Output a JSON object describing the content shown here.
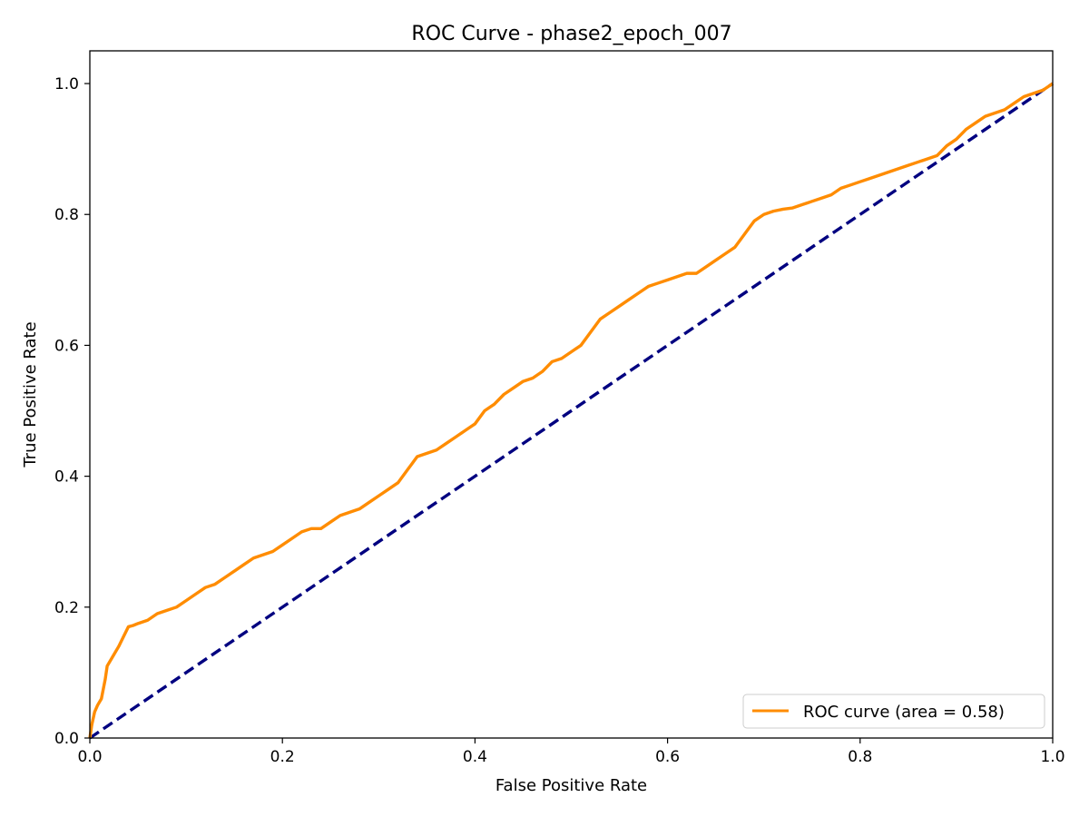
{
  "chart_data": {
    "type": "line",
    "title": "ROC Curve - phase2_epoch_007",
    "xlabel": "False Positive Rate",
    "ylabel": "True Positive Rate",
    "xlim": [
      0.0,
      1.0
    ],
    "ylim": [
      0.0,
      1.05
    ],
    "xticks": [
      "0.0",
      "0.2",
      "0.4",
      "0.6",
      "0.8",
      "1.0"
    ],
    "yticks": [
      "0.0",
      "0.2",
      "0.4",
      "0.6",
      "0.8",
      "1.0"
    ],
    "grid": false,
    "legend_position": "lower-right",
    "series": [
      {
        "name": "ROC curve (area = 0.58)",
        "color": "#ff8c00",
        "style": "solid",
        "x": [
          0.0,
          0.002,
          0.005,
          0.008,
          0.012,
          0.016,
          0.018,
          0.022,
          0.026,
          0.03,
          0.035,
          0.04,
          0.045,
          0.05,
          0.06,
          0.07,
          0.08,
          0.09,
          0.1,
          0.11,
          0.12,
          0.13,
          0.14,
          0.15,
          0.16,
          0.17,
          0.18,
          0.19,
          0.2,
          0.21,
          0.22,
          0.23,
          0.24,
          0.25,
          0.26,
          0.27,
          0.28,
          0.29,
          0.3,
          0.31,
          0.32,
          0.33,
          0.335,
          0.34,
          0.35,
          0.36,
          0.37,
          0.38,
          0.39,
          0.4,
          0.41,
          0.42,
          0.43,
          0.44,
          0.45,
          0.46,
          0.47,
          0.48,
          0.49,
          0.5,
          0.51,
          0.52,
          0.53,
          0.54,
          0.55,
          0.56,
          0.57,
          0.58,
          0.59,
          0.6,
          0.61,
          0.62,
          0.63,
          0.64,
          0.65,
          0.66,
          0.67,
          0.68,
          0.69,
          0.7,
          0.71,
          0.72,
          0.73,
          0.74,
          0.75,
          0.76,
          0.77,
          0.78,
          0.79,
          0.8,
          0.81,
          0.82,
          0.83,
          0.84,
          0.85,
          0.86,
          0.87,
          0.88,
          0.89,
          0.9,
          0.91,
          0.92,
          0.93,
          0.94,
          0.95,
          0.96,
          0.97,
          0.98,
          0.99,
          1.0
        ],
        "y": [
          0.0,
          0.02,
          0.04,
          0.05,
          0.06,
          0.09,
          0.11,
          0.12,
          0.13,
          0.14,
          0.155,
          0.17,
          0.172,
          0.175,
          0.18,
          0.19,
          0.195,
          0.2,
          0.21,
          0.22,
          0.23,
          0.235,
          0.245,
          0.255,
          0.265,
          0.275,
          0.28,
          0.285,
          0.295,
          0.305,
          0.315,
          0.32,
          0.32,
          0.33,
          0.34,
          0.345,
          0.35,
          0.36,
          0.37,
          0.38,
          0.39,
          0.41,
          0.42,
          0.43,
          0.435,
          0.44,
          0.45,
          0.46,
          0.47,
          0.48,
          0.5,
          0.51,
          0.525,
          0.535,
          0.545,
          0.55,
          0.56,
          0.575,
          0.58,
          0.59,
          0.6,
          0.62,
          0.64,
          0.65,
          0.66,
          0.67,
          0.68,
          0.69,
          0.695,
          0.7,
          0.705,
          0.71,
          0.71,
          0.72,
          0.73,
          0.74,
          0.75,
          0.77,
          0.79,
          0.8,
          0.805,
          0.808,
          0.81,
          0.815,
          0.82,
          0.825,
          0.83,
          0.84,
          0.845,
          0.85,
          0.855,
          0.86,
          0.865,
          0.87,
          0.875,
          0.88,
          0.885,
          0.89,
          0.905,
          0.915,
          0.93,
          0.94,
          0.95,
          0.955,
          0.96,
          0.97,
          0.98,
          0.985,
          0.99,
          1.0
        ]
      },
      {
        "name": "",
        "color": "#000080",
        "style": "dashed",
        "x": [
          0.0,
          1.0
        ],
        "y": [
          0.0,
          1.0
        ]
      }
    ]
  }
}
